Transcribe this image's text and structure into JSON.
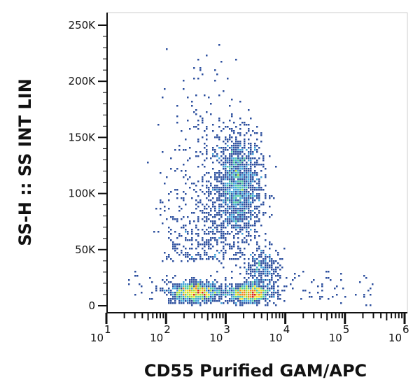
{
  "chart_data": {
    "type": "scatter",
    "subtype": "flow-cytometry density dot plot",
    "xlabel": "CD55 Purified GAM/APC",
    "ylabel": "SS-H :: SS INT LIN",
    "x_scale": "log",
    "xlim": [
      5,
      1000000
    ],
    "x_ticks": [
      {
        "value": 10,
        "base": "10",
        "exp": "1"
      },
      {
        "value": 100,
        "base": "10",
        "exp": "2"
      },
      {
        "value": 1000,
        "base": "10",
        "exp": "3"
      },
      {
        "value": 10000,
        "base": "10",
        "exp": "4"
      },
      {
        "value": 100000,
        "base": "10",
        "exp": "5"
      },
      {
        "value": 1000000,
        "base": "10",
        "exp": "6"
      }
    ],
    "y_scale": "linear",
    "ylim": [
      -5000,
      262000
    ],
    "y_ticks": [
      {
        "value": 0,
        "label": "0"
      },
      {
        "value": 50000,
        "label": "50K"
      },
      {
        "value": 100000,
        "label": "100K"
      },
      {
        "value": 150000,
        "label": "150K"
      },
      {
        "value": 200000,
        "label": "200K"
      },
      {
        "value": 250000,
        "label": "250K"
      }
    ],
    "grid": false,
    "legend": "none",
    "density_colors": [
      "#2c4f9e",
      "#3fa0d8",
      "#4cc9a0",
      "#9fdc3c",
      "#f2e02a",
      "#f08a1e",
      "#d6241c"
    ],
    "populations": [
      {
        "x_center": 1600,
        "x_spread_decades": 0.2,
        "y_center": 105000,
        "y_spread": 24000,
        "count": 1600
      },
      {
        "x_center": 320,
        "x_spread_decades": 0.22,
        "y_center": 12000,
        "y_spread": 4500,
        "count": 1100
      },
      {
        "x_center": 2500,
        "x_spread_decades": 0.18,
        "y_center": 11000,
        "y_spread": 4000,
        "count": 1000
      },
      {
        "x_center": 4200,
        "x_spread_decades": 0.15,
        "y_center": 32000,
        "y_spread": 9000,
        "count": 300
      }
    ]
  }
}
